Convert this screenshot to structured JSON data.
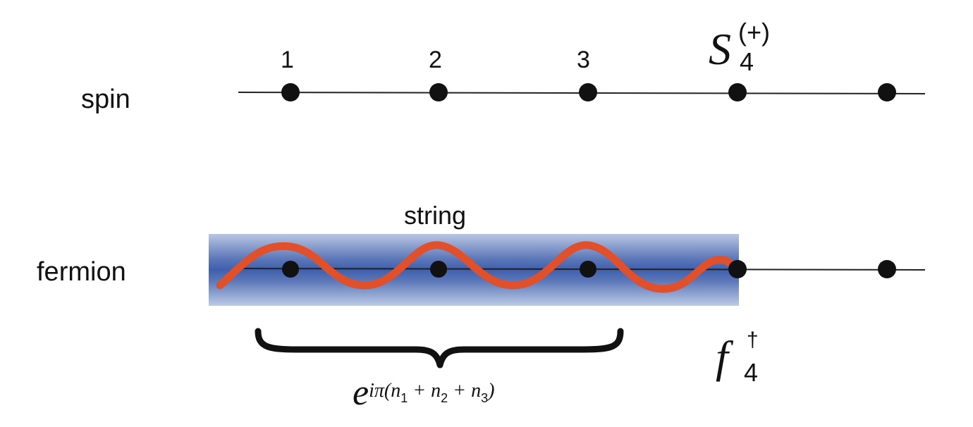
{
  "rows": {
    "spin_label": "spin",
    "fermion_label": "fermion"
  },
  "sites": [
    "1",
    "2",
    "3"
  ],
  "string_label": "string",
  "operators": {
    "spin": {
      "base": "S",
      "sub": "4",
      "sup": "(+)"
    },
    "fermion": {
      "base": "f",
      "sub": "4",
      "sup": "†"
    }
  },
  "phase_factor": {
    "base": "e",
    "exponent": "iπ(n",
    "terms": [
      {
        "sub": "1",
        "after": " + n"
      },
      {
        "sub": "2",
        "after": " + n"
      },
      {
        "sub": "3",
        "after": ")"
      }
    ]
  },
  "colors": {
    "string_wave": "#e0502a",
    "string_band": "#3f5fae",
    "line": "#222222",
    "dot": "#111111"
  }
}
